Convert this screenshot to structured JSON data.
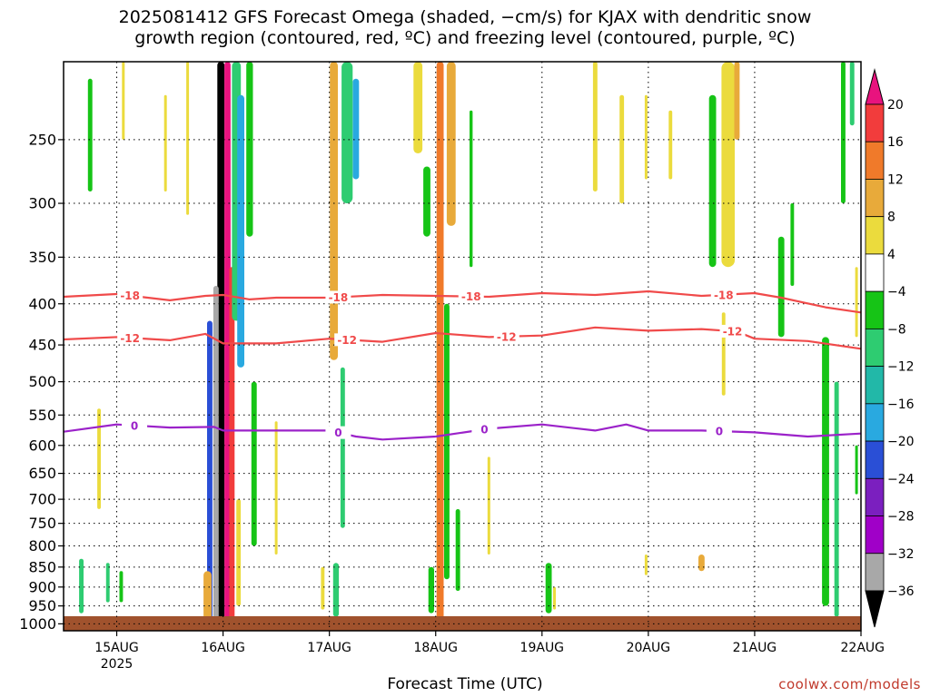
{
  "title": {
    "line1": "2025081412 GFS Forecast Omega (shaded, −cm/s) for KJAX with dendritic snow",
    "line2": "growth region (contoured, red, ºC) and freezing level (contoured, purple, ºC)"
  },
  "credit": "coolwx.com/models",
  "chart_data": {
    "type": "heatmap",
    "xlabel": "Forecast Time (UTC)",
    "ylabel": "",
    "x_ticks": [
      "15AUG",
      "16AUG",
      "17AUG",
      "18AUG",
      "19AUG",
      "20AUG",
      "21AUG",
      "22AUG"
    ],
    "x_year_label": "2025",
    "x_range_hours": [
      -12,
      168
    ],
    "y_ticks": [
      250,
      300,
      350,
      400,
      450,
      500,
      550,
      600,
      650,
      700,
      750,
      800,
      850,
      900,
      950,
      1000
    ],
    "y_range_hpa": [
      200,
      1020
    ],
    "y_scale": "log-pressure",
    "grid": true,
    "colorbar": {
      "labels": [
        "20",
        "16",
        "12",
        "8",
        "4",
        "−4",
        "−8",
        "−12",
        "−16",
        "−20",
        "−24",
        "−28",
        "−32",
        "−36"
      ],
      "colors": [
        "#e8137e",
        "#f23c3c",
        "#f07a2a",
        "#e8aa3a",
        "#ebdb3d",
        "#ffffff",
        "#16c416",
        "#2ecc71",
        "#22b8a8",
        "#29a9e0",
        "#2a4fd6",
        "#7b1fbf",
        "#a000c8",
        "#a8a8a8",
        "#000000"
      ]
    },
    "contours": [
      {
        "name": "-18",
        "color": "#f04a4a",
        "points": [
          [
            -12,
            392
          ],
          [
            0,
            389
          ],
          [
            12,
            396
          ],
          [
            20,
            391
          ],
          [
            24,
            390
          ],
          [
            30,
            395
          ],
          [
            36,
            393
          ],
          [
            48,
            393
          ],
          [
            60,
            390
          ],
          [
            72,
            391
          ],
          [
            84,
            392
          ],
          [
            96,
            388
          ],
          [
            108,
            390
          ],
          [
            120,
            386
          ],
          [
            132,
            391
          ],
          [
            144,
            388
          ],
          [
            150,
            393
          ],
          [
            160,
            404
          ],
          [
            168,
            410
          ]
        ],
        "labels_at": [
          3,
          50,
          80,
          137
        ]
      },
      {
        "name": "-12",
        "color": "#f04a4a",
        "points": [
          [
            -12,
            443
          ],
          [
            0,
            440
          ],
          [
            12,
            444
          ],
          [
            20,
            436
          ],
          [
            24,
            448
          ],
          [
            36,
            448
          ],
          [
            48,
            442
          ],
          [
            60,
            446
          ],
          [
            72,
            435
          ],
          [
            84,
            440
          ],
          [
            96,
            438
          ],
          [
            108,
            428
          ],
          [
            120,
            432
          ],
          [
            132,
            430
          ],
          [
            140,
            433
          ],
          [
            144,
            442
          ],
          [
            156,
            445
          ],
          [
            168,
            455
          ]
        ],
        "labels_at": [
          3,
          52,
          88,
          139
        ]
      },
      {
        "name": "0",
        "color": "#9b22c9",
        "points": [
          [
            -12,
            577
          ],
          [
            0,
            565
          ],
          [
            12,
            570
          ],
          [
            22,
            569
          ],
          [
            24,
            575
          ],
          [
            36,
            575
          ],
          [
            48,
            575
          ],
          [
            54,
            585
          ],
          [
            60,
            590
          ],
          [
            72,
            585
          ],
          [
            84,
            572
          ],
          [
            96,
            565
          ],
          [
            108,
            575
          ],
          [
            115,
            565
          ],
          [
            120,
            575
          ],
          [
            132,
            575
          ],
          [
            144,
            578
          ],
          [
            156,
            585
          ],
          [
            168,
            580
          ]
        ],
        "labels_at": [
          4,
          50,
          83,
          136
        ]
      }
    ],
    "omega_bands": [
      {
        "t": 23.5,
        "p1": 200,
        "p2": 1020,
        "w": 1.6,
        "level": 14
      },
      {
        "t": 22.4,
        "p1": 380,
        "p2": 1005,
        "w": 1.2,
        "level": 13
      },
      {
        "t": 25.0,
        "p1": 200,
        "p2": 1010,
        "w": 1.4,
        "level": 0
      },
      {
        "t": 26.0,
        "p1": 360,
        "p2": 1005,
        "w": 1.2,
        "level": 1
      },
      {
        "t": 21.0,
        "p1": 420,
        "p2": 1000,
        "w": 1.2,
        "level": 10
      },
      {
        "t": 27.0,
        "p1": 200,
        "p2": 420,
        "w": 2.0,
        "level": 7
      },
      {
        "t": 28.0,
        "p1": 220,
        "p2": 480,
        "w": 1.6,
        "level": 9
      },
      {
        "t": 30.0,
        "p1": 200,
        "p2": 330,
        "w": 1.5,
        "level": 6
      },
      {
        "t": 31.0,
        "p1": 500,
        "p2": 800,
        "w": 1.2,
        "level": 6
      },
      {
        "t": 20.5,
        "p1": 860,
        "p2": 990,
        "w": 1.8,
        "level": 3
      },
      {
        "t": 27.5,
        "p1": 700,
        "p2": 950,
        "w": 1.0,
        "level": 4
      },
      {
        "t": 49.0,
        "p1": 200,
        "p2": 470,
        "w": 1.8,
        "level": 3
      },
      {
        "t": 52.0,
        "p1": 200,
        "p2": 300,
        "w": 2.5,
        "level": 7
      },
      {
        "t": 54.0,
        "p1": 210,
        "p2": 280,
        "w": 1.4,
        "level": 9
      },
      {
        "t": 51.0,
        "p1": 480,
        "p2": 760,
        "w": 1.0,
        "level": 7
      },
      {
        "t": 49.5,
        "p1": 840,
        "p2": 980,
        "w": 1.3,
        "level": 7
      },
      {
        "t": 46.5,
        "p1": 850,
        "p2": 960,
        "w": 0.8,
        "level": 4
      },
      {
        "t": 73.0,
        "p1": 200,
        "p2": 1000,
        "w": 1.6,
        "level": 2
      },
      {
        "t": 75.5,
        "p1": 200,
        "p2": 320,
        "w": 2.0,
        "level": 3
      },
      {
        "t": 74.5,
        "p1": 400,
        "p2": 880,
        "w": 1.2,
        "level": 6
      },
      {
        "t": 77.0,
        "p1": 720,
        "p2": 910,
        "w": 1.0,
        "level": 6
      },
      {
        "t": 71.0,
        "p1": 850,
        "p2": 970,
        "w": 1.3,
        "level": 6
      },
      {
        "t": 68.0,
        "p1": 200,
        "p2": 260,
        "w": 2.0,
        "level": 4
      },
      {
        "t": 70.0,
        "p1": 270,
        "p2": 330,
        "w": 1.6,
        "level": 6
      },
      {
        "t": 97.5,
        "p1": 840,
        "p2": 970,
        "w": 1.4,
        "level": 6
      },
      {
        "t": 98.8,
        "p1": 900,
        "p2": 960,
        "w": 0.5,
        "level": 4
      },
      {
        "t": 84.0,
        "p1": 620,
        "p2": 820,
        "w": 0.6,
        "level": 4
      },
      {
        "t": 108.0,
        "p1": 200,
        "p2": 290,
        "w": 1.0,
        "level": 4
      },
      {
        "t": 114.0,
        "p1": 220,
        "p2": 300,
        "w": 1.0,
        "level": 4
      },
      {
        "t": 119.5,
        "p1": 220,
        "p2": 280,
        "w": 0.6,
        "level": 4
      },
      {
        "t": 119.5,
        "p1": 820,
        "p2": 870,
        "w": 0.6,
        "level": 4
      },
      {
        "t": 125.0,
        "p1": 230,
        "p2": 280,
        "w": 0.8,
        "level": 4
      },
      {
        "t": 134.5,
        "p1": 220,
        "p2": 360,
        "w": 1.6,
        "level": 6
      },
      {
        "t": 138.0,
        "p1": 200,
        "p2": 360,
        "w": 3.0,
        "level": 4
      },
      {
        "t": 140.0,
        "p1": 200,
        "p2": 250,
        "w": 1.2,
        "level": 3
      },
      {
        "t": 132.0,
        "p1": 820,
        "p2": 860,
        "w": 1.4,
        "level": 3
      },
      {
        "t": 137.0,
        "p1": 410,
        "p2": 520,
        "w": 0.8,
        "level": 4
      },
      {
        "t": 150.0,
        "p1": 330,
        "p2": 440,
        "w": 1.4,
        "level": 6
      },
      {
        "t": 152.5,
        "p1": 300,
        "p2": 380,
        "w": 0.8,
        "level": 6
      },
      {
        "t": 160.0,
        "p1": 440,
        "p2": 950,
        "w": 1.6,
        "level": 6
      },
      {
        "t": 162.5,
        "p1": 500,
        "p2": 980,
        "w": 1.0,
        "level": 7
      },
      {
        "t": 164.0,
        "p1": 200,
        "p2": 300,
        "w": 1.0,
        "level": 6
      },
      {
        "t": 166.0,
        "p1": 200,
        "p2": 240,
        "w": 1.0,
        "level": 7
      },
      {
        "t": 167.0,
        "p1": 360,
        "p2": 440,
        "w": 0.6,
        "level": 4
      },
      {
        "t": 167.0,
        "p1": 600,
        "p2": 690,
        "w": 0.6,
        "level": 6
      },
      {
        "t": -8.0,
        "p1": 830,
        "p2": 970,
        "w": 1.0,
        "level": 7
      },
      {
        "t": -4.0,
        "p1": 540,
        "p2": 720,
        "w": 0.8,
        "level": 4
      },
      {
        "t": -2.0,
        "p1": 840,
        "p2": 940,
        "w": 0.8,
        "level": 7
      },
      {
        "t": 1.0,
        "p1": 860,
        "p2": 940,
        "w": 0.8,
        "level": 6
      },
      {
        "t": -6.0,
        "p1": 210,
        "p2": 290,
        "w": 1.0,
        "level": 6
      },
      {
        "t": 1.5,
        "p1": 200,
        "p2": 250,
        "w": 0.6,
        "level": 4
      },
      {
        "t": 11.0,
        "p1": 220,
        "p2": 290,
        "w": 0.6,
        "level": 4
      },
      {
        "t": 16.0,
        "p1": 200,
        "p2": 310,
        "w": 0.6,
        "level": 4
      },
      {
        "t": 36.0,
        "p1": 560,
        "p2": 820,
        "w": 0.5,
        "level": 4
      },
      {
        "t": 80.0,
        "p1": 230,
        "p2": 360,
        "w": 0.7,
        "level": 6
      }
    ]
  }
}
